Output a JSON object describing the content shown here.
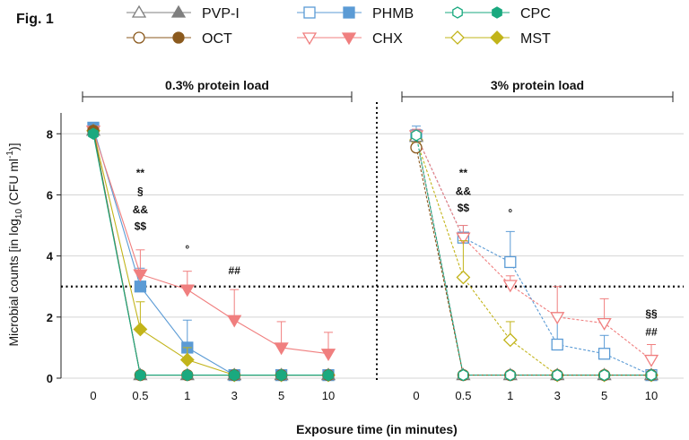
{
  "figure_label": "Fig. 1",
  "panels": [
    "0.3% protein load",
    "3% protein load"
  ],
  "axes": {
    "ylabel_main": "Microbial counts [in log",
    "ylabel_sub": "10",
    "ylabel_unit_a": " (CFU ml",
    "ylabel_sup": "-1",
    "ylabel_end": ")]",
    "xlabel": "Exposure time (in minutes)"
  },
  "legend": [
    {
      "name": "PVP-I",
      "color": "#7f7f7f",
      "shape": "triangle-up"
    },
    {
      "name": "PHMB",
      "color": "#5b9bd5",
      "shape": "square"
    },
    {
      "name": "CPC",
      "color": "#1aa97f",
      "shape": "hexagon"
    },
    {
      "name": "OCT",
      "color": "#8b5a1e",
      "shape": "circle"
    },
    {
      "name": "CHX",
      "color": "#f07f7f",
      "shape": "triangle-down"
    },
    {
      "name": "MST",
      "color": "#c2b41a",
      "shape": "diamond"
    }
  ],
  "chart_data": {
    "type": "line",
    "x": [
      "0",
      "0.5",
      "1",
      "3",
      "5",
      "10"
    ],
    "ylim": [
      0,
      8.8
    ],
    "yticks": [
      "0",
      "2",
      "4",
      "6",
      "8"
    ],
    "threshold": 3,
    "grid": true,
    "legend_position": "top",
    "panels": [
      {
        "title": "0.3% protein load",
        "series": [
          {
            "name": "PVP-I",
            "values": [
              8.1,
              0.1,
              0.1,
              0.1,
              0.1,
              0.1
            ]
          },
          {
            "name": "PHMB",
            "values": [
              8.2,
              3.0,
              1.0,
              0.1,
              0.1,
              0.1
            ],
            "err": [
              0,
              0.6,
              0.9,
              0,
              0,
              0
            ]
          },
          {
            "name": "CPC",
            "values": [
              8.0,
              0.1,
              0.1,
              0.1,
              0.1,
              0.1
            ]
          },
          {
            "name": "OCT",
            "values": [
              8.1,
              0.1,
              0.1,
              0.1,
              0.1,
              0.1
            ]
          },
          {
            "name": "CHX",
            "values": [
              8.1,
              3.4,
              2.9,
              1.9,
              1.0,
              0.8
            ],
            "err": [
              0,
              0.8,
              0.6,
              1.0,
              0.85,
              0.7
            ]
          },
          {
            "name": "MST",
            "values": [
              8.1,
              1.6,
              0.6,
              0.1,
              0.1,
              0.1
            ],
            "err": [
              0,
              0.9,
              0.4,
              0,
              0,
              0
            ]
          }
        ],
        "annotations": [
          {
            "x": "0.5",
            "y": 6.6,
            "text": "**"
          },
          {
            "x": "0.5",
            "y": 6.0,
            "text": "§"
          },
          {
            "x": "0.5",
            "y": 5.4,
            "text": "&&"
          },
          {
            "x": "0.5",
            "y": 4.85,
            "text": "$$"
          },
          {
            "x": "1",
            "y": 4.1,
            "text": "°"
          },
          {
            "x": "3",
            "y": 3.4,
            "text": "##"
          }
        ]
      },
      {
        "title": "3% protein load",
        "series": [
          {
            "name": "PVP-I",
            "values": [
              7.9,
              0.1,
              0.1,
              0.1,
              0.1,
              0.1
            ]
          },
          {
            "name": "PHMB",
            "values": [
              7.95,
              4.6,
              3.8,
              1.1,
              0.8,
              0.1
            ],
            "err": [
              0.3,
              0.4,
              1.0,
              0.9,
              0.6,
              0
            ]
          },
          {
            "name": "CPC",
            "values": [
              7.95,
              0.1,
              0.1,
              0.1,
              0.1,
              0.1
            ]
          },
          {
            "name": "OCT",
            "values": [
              7.55,
              0.1,
              0.1,
              0.1,
              0.1,
              0.1
            ],
            "err": [
              0.3,
              0,
              0,
              0,
              0,
              0
            ]
          },
          {
            "name": "CHX",
            "values": [
              7.95,
              4.6,
              3.05,
              2.0,
              1.8,
              0.6
            ],
            "err": [
              0.2,
              0.4,
              0.3,
              1.0,
              0.8,
              0.5
            ]
          },
          {
            "name": "MST",
            "values": [
              7.8,
              3.3,
              1.25,
              0.1,
              0.1,
              0.1
            ],
            "err": [
              0,
              1.2,
              0.6,
              0,
              0,
              0
            ]
          }
        ],
        "annotations": [
          {
            "x": "0.5",
            "y": 6.6,
            "text": "**"
          },
          {
            "x": "0.5",
            "y": 6.0,
            "text": "&&"
          },
          {
            "x": "0.5",
            "y": 5.45,
            "text": "$$"
          },
          {
            "x": "1",
            "y": 5.3,
            "text": "°"
          },
          {
            "x": "10",
            "y": 2.0,
            "text": "§§"
          },
          {
            "x": "10",
            "y": 1.4,
            "text": "##"
          }
        ]
      }
    ]
  }
}
